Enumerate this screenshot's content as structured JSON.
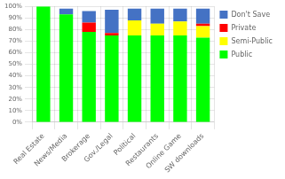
{
  "chart_data": {
    "type": "bar",
    "stacked": true,
    "categories": [
      "Real Estate",
      "News/Media",
      "Brokerage",
      "Gov./Legal",
      "Political",
      "Restaurants",
      "Online Game",
      "SW downloads"
    ],
    "series": [
      {
        "name": "Public",
        "color": "#00FF00",
        "values": [
          100,
          93,
          78,
          75,
          75,
          75,
          75,
          73
        ]
      },
      {
        "name": "Semi-Public",
        "color": "#FFFF00",
        "values": [
          0,
          0,
          0,
          0,
          13,
          10,
          12,
          10
        ]
      },
      {
        "name": "Private",
        "color": "#FF0000",
        "values": [
          0,
          0,
          8,
          2,
          0,
          0,
          0,
          2
        ]
      },
      {
        "name": "Don't Save",
        "color": "#4472C4",
        "values": [
          0,
          5,
          10,
          20,
          10,
          13,
          11,
          13
        ]
      }
    ],
    "ylim": [
      0,
      100
    ],
    "yticks": [
      {
        "value": 0,
        "label": "0%"
      },
      {
        "value": 10,
        "label": "10%"
      },
      {
        "value": 20,
        "label": "20%"
      },
      {
        "value": 30,
        "label": "30%"
      },
      {
        "value": 40,
        "label": "40%"
      },
      {
        "value": 50,
        "label": "50%"
      },
      {
        "value": 60,
        "label": "60%"
      },
      {
        "value": 70,
        "label": "70%"
      },
      {
        "value": 80,
        "label": "80%"
      },
      {
        "value": 90,
        "label": "90%"
      },
      {
        "value": 100,
        "label": "100%"
      }
    ],
    "grid": true,
    "legend": "right"
  }
}
